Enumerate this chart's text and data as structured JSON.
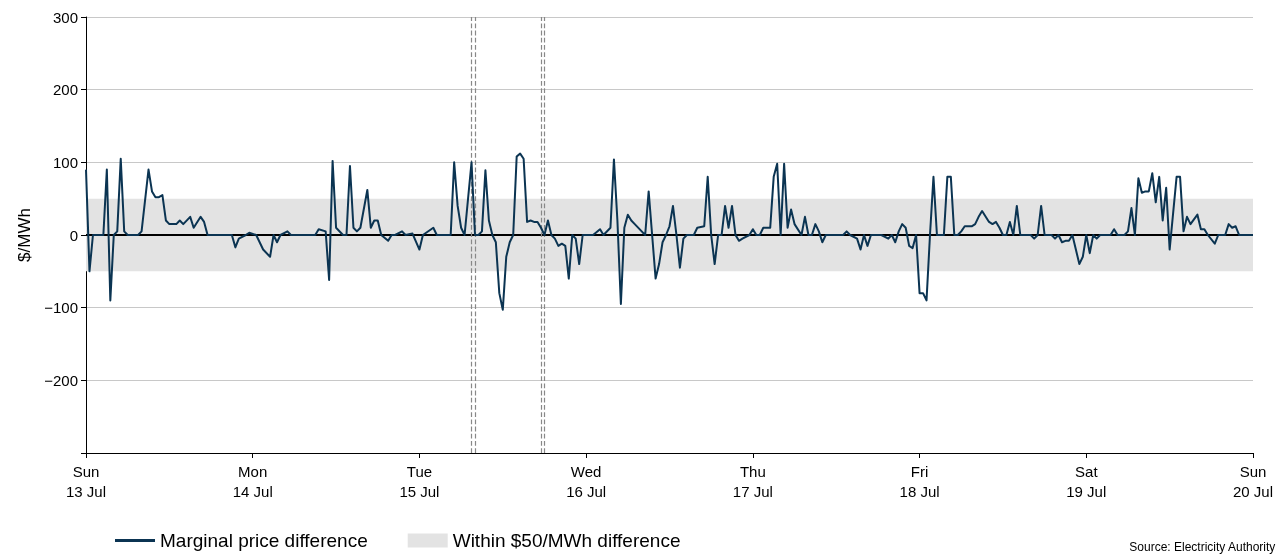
{
  "chart_data": {
    "type": "line",
    "ylabel": "$/MWh",
    "x": [
      "--07-13T00:00",
      "--07-13T00:30",
      "--07-13T01:00",
      "--07-13T02:30",
      "--07-13T03:00",
      "--07-13T03:30",
      "--07-13T04:00",
      "--07-13T04:30",
      "--07-13T05:00",
      "--07-13T05:30",
      "--07-13T06:00",
      "--07-13T07:30",
      "--07-13T08:00",
      "--07-13T09:00",
      "--07-13T09:30",
      "--07-13T10:00",
      "--07-13T10:30",
      "--07-13T11:00",
      "--07-13T11:30",
      "--07-13T12:00",
      "--07-13T13:00",
      "--07-13T13:30",
      "--07-13T14:00",
      "--07-13T15:00",
      "--07-13T15:30",
      "--07-13T16:30",
      "--07-13T17:00",
      "--07-13T17:30",
      "--07-13T21:00",
      "--07-13T21:30",
      "--07-13T22:00",
      "--07-13T23:00",
      "--07-13T23:30",
      "--07-14T00:30",
      "--07-14T01:30",
      "--07-14T02:30",
      "--07-14T03:00",
      "--07-14T03:30",
      "--07-14T04:00",
      "--07-14T05:00",
      "--07-14T05:30",
      "--07-14T09:00",
      "--07-14T09:30",
      "--07-14T10:30",
      "--07-14T11:00",
      "--07-14T11:30",
      "--07-14T12:00",
      "--07-14T13:00",
      "--07-14T13:30",
      "--07-14T14:00",
      "--07-14T14:30",
      "--07-14T15:00",
      "--07-14T15:30",
      "--07-14T16:30",
      "--07-14T17:00",
      "--07-14T17:30",
      "--07-14T18:00",
      "--07-14T18:30",
      "--07-14T19:30",
      "--07-14T20:00",
      "--07-14T20:30",
      "--07-14T21:30",
      "--07-14T22:00",
      "--07-14T23:00",
      "--07-15T00:00",
      "--07-15T00:30",
      "--07-15T02:00",
      "--07-15T02:30",
      "--07-15T04:30",
      "--07-15T05:00",
      "--07-15T05:30",
      "--07-15T06:00",
      "--07-15T06:30",
      "--07-15T07:30",
      "--07-15T08:00",
      "--07-15T08:30",
      "--07-15T09:00",
      "--07-15T09:30",
      "--07-15T10:00",
      "--07-15T10:30",
      "--07-15T11:00",
      "--07-15T11:30",
      "--07-15T12:00",
      "--07-15T12:30",
      "--07-15T13:00",
      "--07-15T13:30",
      "--07-15T14:00",
      "--07-15T14:30",
      "--07-15T15:00",
      "--07-15T15:30",
      "--07-15T16:00",
      "--07-15T16:30",
      "--07-15T17:00",
      "--07-15T17:30",
      "--07-15T18:00",
      "--07-15T18:30",
      "--07-15T19:00",
      "--07-15T19:30",
      "--07-15T20:00",
      "--07-15T20:30",
      "--07-15T21:00",
      "--07-15T21:30",
      "--07-15T22:00",
      "--07-15T22:30",
      "--07-15T23:00",
      "--07-15T23:30",
      "--07-16T01:00",
      "--07-16T02:00",
      "--07-16T02:30",
      "--07-16T03:30",
      "--07-16T04:00",
      "--07-16T04:30",
      "--07-16T05:00",
      "--07-16T05:30",
      "--07-16T06:00",
      "--07-16T06:30",
      "--07-16T07:00",
      "--07-16T08:00",
      "--07-16T08:30",
      "--07-16T09:00",
      "--07-16T09:30",
      "--07-16T10:00",
      "--07-16T10:30",
      "--07-16T11:00",
      "--07-16T11:30",
      "--07-16T12:00",
      "--07-16T12:30",
      "--07-16T13:00",
      "--07-16T13:30",
      "--07-16T14:00",
      "--07-16T14:30",
      "--07-16T15:30",
      "--07-16T16:00",
      "--07-16T17:00",
      "--07-16T17:30",
      "--07-16T18:00",
      "--07-16T18:30",
      "--07-16T19:00",
      "--07-16T19:30",
      "--07-16T20:00",
      "--07-16T20:30",
      "--07-16T21:00",
      "--07-16T21:30",
      "--07-16T22:00",
      "--07-16T22:30",
      "--07-16T23:30",
      "--07-17T00:00",
      "--07-17T00:30",
      "--07-17T01:00",
      "--07-17T01:30",
      "--07-17T02:30",
      "--07-17T03:00",
      "--07-17T03:30",
      "--07-17T04:00",
      "--07-17T04:30",
      "--07-17T05:00",
      "--07-17T05:30",
      "--07-17T06:00",
      "--07-17T07:00",
      "--07-17T07:30",
      "--07-17T08:00",
      "--07-17T08:30",
      "--07-17T09:00",
      "--07-17T09:30",
      "--07-17T10:00",
      "--07-17T10:30",
      "--07-17T13:00",
      "--07-17T13:30",
      "--07-17T14:00",
      "--07-17T15:00",
      "--07-17T15:30",
      "--07-17T16:00",
      "--07-17T16:30",
      "--07-17T17:00",
      "--07-17T18:30",
      "--07-17T19:30",
      "--07-17T20:00",
      "--07-17T20:30",
      "--07-17T21:00",
      "--07-17T21:30",
      "--07-17T22:00",
      "--07-17T22:30",
      "--07-17T23:00",
      "--07-17T23:30",
      "--07-18T00:00",
      "--07-18T00:30",
      "--07-18T01:00",
      "--07-18T01:30",
      "--07-18T02:00",
      "--07-18T02:30",
      "--07-18T03:30",
      "--07-18T04:00",
      "--07-18T04:30",
      "--07-18T05:00",
      "--07-18T05:30",
      "--07-18T06:00",
      "--07-18T06:30",
      "--07-18T07:30",
      "--07-18T08:00",
      "--07-18T08:30",
      "--07-18T09:00",
      "--07-18T10:00",
      "--07-18T10:30",
      "--07-18T11:00",
      "--07-18T11:30",
      "--07-18T12:00",
      "--07-18T12:30",
      "--07-18T13:00",
      "--07-18T13:30",
      "--07-18T14:00",
      "--07-18T14:30",
      "--07-18T16:00",
      "--07-18T16:30",
      "--07-18T17:00",
      "--07-18T17:30",
      "--07-18T18:00",
      "--07-18T19:00",
      "--07-18T19:30",
      "--07-18T20:00",
      "--07-18T20:30",
      "--07-18T21:00",
      "--07-18T21:30",
      "--07-18T22:00",
      "--07-18T22:30",
      "--07-18T23:00",
      "--07-18T23:30",
      "--07-19T00:00",
      "--07-19T00:30",
      "--07-19T01:00",
      "--07-19T01:30",
      "--07-19T02:00",
      "--07-19T03:30",
      "--07-19T04:00",
      "--07-19T04:30",
      "--07-19T05:30",
      "--07-19T06:00",
      "--07-19T06:30",
      "--07-19T07:00",
      "--07-19T07:30",
      "--07-19T08:00",
      "--07-19T08:30",
      "--07-19T09:00",
      "--07-19T09:30",
      "--07-19T10:00",
      "--07-19T10:30",
      "--07-19T11:00",
      "--07-19T11:30",
      "--07-19T12:00",
      "--07-19T13:00",
      "--07-19T13:30",
      "--07-19T14:00",
      "--07-19T14:30",
      "--07-19T15:00",
      "--07-19T16:00",
      "--07-19T16:30",
      "--07-19T17:00",
      "--07-19T17:30",
      "--07-19T18:30",
      "--07-19T19:00",
      "--07-19T20:00",
      "--07-19T20:30",
      "--07-19T21:00",
      "--07-19T21:30",
      "--07-19T22:00",
      "--07-20T00:00"
    ],
    "series": [
      {
        "name": "Marginal price difference",
        "color": "#0b3452",
        "values": [
          90,
          -50,
          0,
          0,
          90,
          -90,
          0,
          5,
          105,
          5,
          0,
          0,
          5,
          90,
          60,
          52,
          52,
          55,
          20,
          15,
          15,
          20,
          15,
          25,
          10,
          25,
          18,
          0,
          0,
          -17,
          -5,
          0,
          3,
          0,
          -20,
          -30,
          0,
          -10,
          0,
          5,
          0,
          0,
          8,
          5,
          -62,
          102,
          10,
          0,
          0,
          95,
          10,
          5,
          10,
          62,
          10,
          20,
          20,
          0,
          -8,
          0,
          0,
          5,
          0,
          2,
          -20,
          0,
          10,
          0,
          0,
          100,
          40,
          10,
          0,
          100,
          0,
          0,
          5,
          89,
          20,
          0,
          -10,
          -80,
          -103,
          -30,
          -10,
          0,
          108,
          112,
          105,
          18,
          20,
          18,
          18,
          10,
          0,
          20,
          0,
          -5,
          -15,
          -12,
          -15,
          -60,
          0,
          -5,
          -40,
          0,
          0,
          8,
          0,
          10,
          104,
          20,
          -95,
          10,
          28,
          20,
          15,
          5,
          0,
          60,
          0,
          -60,
          -40,
          -10,
          0,
          12,
          40,
          0,
          -45,
          -5,
          0,
          0,
          10,
          12,
          80,
          0,
          -40,
          0,
          0,
          40,
          10,
          40,
          0,
          -8,
          -5,
          0,
          8,
          0,
          0,
          10,
          10,
          80,
          98,
          0,
          98,
          10,
          35,
          15,
          0,
          25,
          0,
          0,
          15,
          5,
          -10,
          0,
          0,
          5,
          0,
          -5,
          -20,
          0,
          -15,
          0,
          0,
          -5,
          0,
          -10,
          5,
          15,
          10,
          -15,
          -18,
          0,
          -80,
          -80,
          -90,
          0,
          80,
          0,
          0,
          80,
          80,
          0,
          0,
          5,
          12,
          12,
          15,
          25,
          33,
          18,
          15,
          18,
          10,
          0,
          0,
          18,
          0,
          40,
          0,
          0,
          -5,
          0,
          40,
          0,
          0,
          -5,
          0,
          -10,
          -8,
          -8,
          0,
          -20,
          -40,
          -30,
          0,
          -25,
          0,
          -5,
          0,
          0,
          8,
          0,
          0,
          5,
          37,
          0,
          78,
          58,
          60,
          60,
          85,
          45,
          80,
          20,
          65,
          -20,
          80,
          80,
          5,
          25,
          15,
          28,
          8,
          8,
          0,
          -12,
          0,
          0,
          15,
          10,
          12,
          0,
          0
        ]
      }
    ],
    "xlim": [
      "--07-13",
      "--07-20"
    ],
    "xticks": [
      {
        "value": "--07-13",
        "label": "Sun\n13 Jul"
      },
      {
        "value": "--07-14",
        "label": "Mon\n14 Jul"
      },
      {
        "value": "--07-15",
        "label": "Tue\n15 Jul"
      },
      {
        "value": "--07-16",
        "label": "Wed\n16 Jul"
      },
      {
        "value": "--07-17",
        "label": "Thu\n17 Jul"
      },
      {
        "value": "--07-18",
        "label": "Fri\n18 Jul"
      },
      {
        "value": "--07-19",
        "label": "Sat\n19 Jul"
      },
      {
        "value": "--07-20",
        "label": "Sun\n20 Jul"
      }
    ],
    "ylim": [
      -300,
      300
    ],
    "yticks": [
      {
        "value": -300,
        "label": null
      },
      {
        "value": -200,
        "label": "−200"
      },
      {
        "value": -100,
        "label": "−100"
      },
      0,
      100,
      200,
      300
    ],
    "grid": "y",
    "legend": "bottom",
    "marker": "none",
    "line_style": "solid",
    "bands": [
      {
        "axis": "y",
        "from": -50,
        "to": 50,
        "label": "Within $50/MWh difference",
        "color": "#e3e3e3"
      }
    ],
    "ref_lines": [
      {
        "axis": "y",
        "value": 0,
        "color": "#000000",
        "line_style": "solid"
      },
      {
        "axis": "x",
        "value": "--07-15T07:30",
        "color": "#888888",
        "line_style": "dashed"
      },
      {
        "axis": "x",
        "value": "--07-15T08:00",
        "color": "#888888",
        "line_style": "dashed"
      },
      {
        "axis": "x",
        "value": "--07-15T17:30",
        "color": "#888888",
        "line_style": "dashed"
      },
      {
        "axis": "x",
        "value": "--07-15T18:00",
        "color": "#888888",
        "line_style": "dashed"
      }
    ],
    "annotations": [
      "Source: Electricity Authority"
    ]
  }
}
